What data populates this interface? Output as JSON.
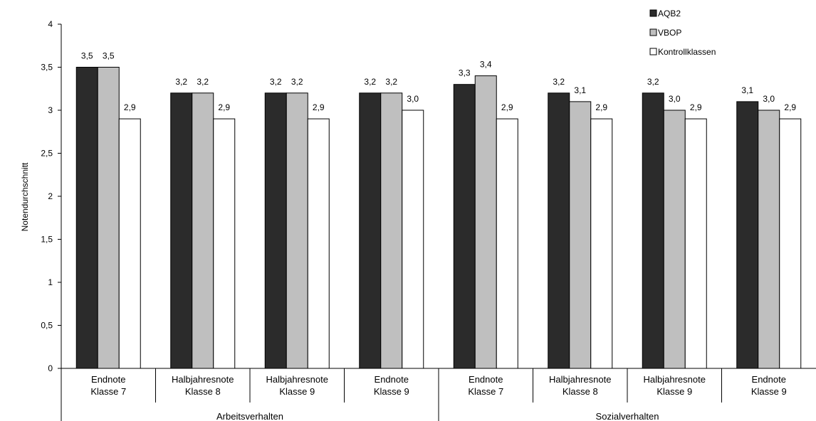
{
  "chart_data": {
    "type": "bar",
    "ylabel": "Notendurchschnitt",
    "ylim": [
      0,
      4
    ],
    "yticks": [
      "0",
      "0,5",
      "1",
      "1,5",
      "2",
      "2,5",
      "3",
      "3,5",
      "4"
    ],
    "categories": [
      {
        "line1": "Endnote",
        "line2": "Klasse 7"
      },
      {
        "line1": "Halbjahresnote",
        "line2": "Klasse 8"
      },
      {
        "line1": "Halbjahresnote",
        "line2": "Klasse 9"
      },
      {
        "line1": "Endnote",
        "line2": "Klasse 9"
      },
      {
        "line1": "Endnote",
        "line2": "Klasse 7"
      },
      {
        "line1": "Halbjahresnote",
        "line2": "Klasse 8"
      },
      {
        "line1": "Halbjahresnote",
        "line2": "Klasse 9"
      },
      {
        "line1": "Endnote",
        "line2": "Klasse 9"
      }
    ],
    "groups": [
      {
        "label": "Arbeitsverhalten"
      },
      {
        "label": "Sozialverhalten"
      }
    ],
    "series": [
      {
        "name": "AQB2",
        "color": "#2b2b2b",
        "values": [
          3.5,
          3.2,
          3.2,
          3.2,
          3.3,
          3.2,
          3.2,
          3.1
        ],
        "labels": [
          "3,5",
          "3,2",
          "3,2",
          "3,2",
          "3,3",
          "3,2",
          "3,2",
          "3,1"
        ]
      },
      {
        "name": "VBOP",
        "color": "#bfbfbf",
        "values": [
          3.5,
          3.2,
          3.2,
          3.2,
          3.4,
          3.1,
          3.0,
          3.0
        ],
        "labels": [
          "3,5",
          "3,2",
          "3,2",
          "3,2",
          "3,4",
          "3,1",
          "3,0",
          "3,0"
        ]
      },
      {
        "name": "Kontrollklassen",
        "color": "#ffffff",
        "values": [
          2.9,
          2.9,
          2.9,
          3.0,
          2.9,
          2.9,
          2.9,
          2.9
        ],
        "labels": [
          "2,9",
          "2,9",
          "2,9",
          "3,0",
          "2,9",
          "2,9",
          "2,9",
          "2,9"
        ]
      }
    ],
    "legend_position": "top-right",
    "grid": false
  }
}
